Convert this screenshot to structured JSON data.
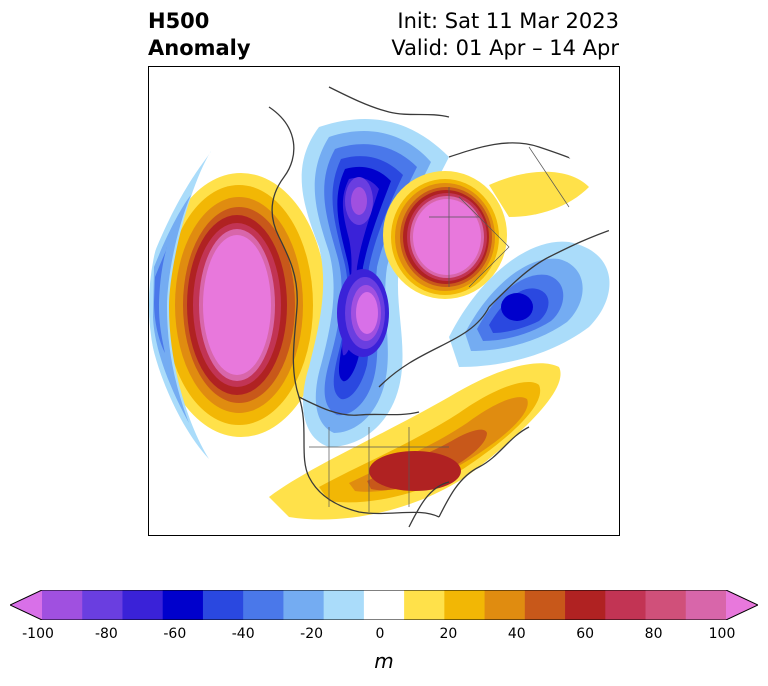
{
  "title": {
    "left_line1": "H500",
    "left_line2": "Anomaly",
    "right_line1": "Init: Sat 11 Mar 2023",
    "right_line2": "Valid: 01 Apr – 14 Apr"
  },
  "colorbar": {
    "unit": "m",
    "ticks": [
      "-100",
      "-80",
      "-60",
      "-40",
      "-20",
      "0",
      "20",
      "40",
      "60",
      "80",
      "100"
    ],
    "colors": [
      "#d870e8",
      "#a050e0",
      "#6a3ee0",
      "#3a22d8",
      "#0000cc",
      "#2a48e0",
      "#4a78ea",
      "#74acf2",
      "#aadcfa",
      "#ffffff",
      "#ffe14a",
      "#f2b705",
      "#e08c10",
      "#c8581a",
      "#b02222",
      "#c23454",
      "#d0507a",
      "#d866aa",
      "#e878dc"
    ]
  },
  "map": {
    "projection": "north-polar-stereographic",
    "anomaly_features": [
      {
        "name": "positive anomaly",
        "region": "NE Pacific / Gulf of Alaska",
        "peak": 100
      },
      {
        "name": "positive anomaly",
        "region": "Western Siberia / Kara Sea",
        "peak": 100
      },
      {
        "name": "positive anomaly",
        "region": "Southeastern United States",
        "peak": 60
      },
      {
        "name": "negative anomaly",
        "region": "Western Canada / Arctic",
        "peak": -100
      },
      {
        "name": "negative anomaly",
        "region": "Barents Sea / Scandinavia",
        "peak": -60
      },
      {
        "name": "negative anomaly",
        "region": "Siberia / Laptev",
        "peak": -80
      }
    ]
  }
}
